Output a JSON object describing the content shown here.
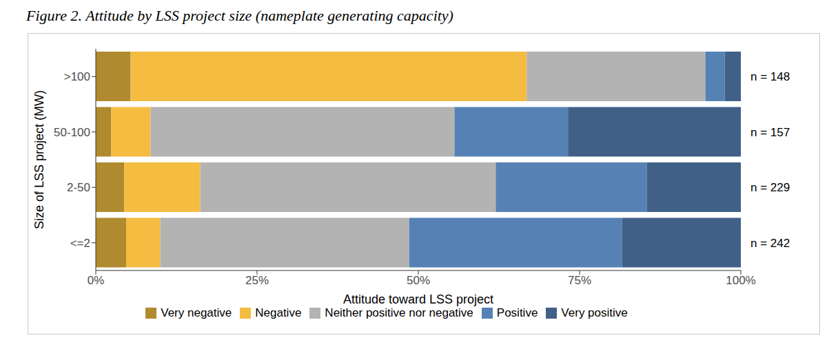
{
  "chart_data": {
    "type": "bar",
    "title": "Figure 2. Attitude by LSS project size (nameplate generating capacity)",
    "orientation": "horizontal",
    "stacked": true,
    "grid": false,
    "legend": "bottom",
    "x_label": "Attitude toward LSS project",
    "y_label": "Size of LSS project (MW)",
    "categories": [
      ">100",
      "50-100",
      "2-50",
      "<=2"
    ],
    "annotations": [
      "n =  148",
      "n =  157",
      "n =  229",
      "n =  242"
    ],
    "xlim": [
      0,
      100
    ],
    "xticks": [
      {
        "value": 0,
        "label": "0%"
      },
      {
        "value": 25,
        "label": "25%"
      },
      {
        "value": 50,
        "label": "50%"
      },
      {
        "value": 75,
        "label": "75%"
      },
      {
        "value": 100,
        "label": "100%"
      }
    ],
    "series": [
      {
        "name": "Very negative",
        "color": "#B08A2E",
        "values": [
          5.4,
          2.4,
          4.4,
          4.7
        ]
      },
      {
        "name": "Negative",
        "color": "#F5BC42",
        "values": [
          61.4,
          6.1,
          11.8,
          5.3
        ]
      },
      {
        "name": "Neither positive nor negative",
        "color": "#B3B3B3",
        "values": [
          27.7,
          47.1,
          45.8,
          38.6
        ]
      },
      {
        "name": "Positive",
        "color": "#5681B4",
        "values": [
          3.0,
          17.6,
          23.4,
          33.0
        ]
      },
      {
        "name": "Very positive",
        "color": "#406088",
        "values": [
          2.5,
          26.8,
          14.6,
          18.4
        ]
      }
    ]
  }
}
